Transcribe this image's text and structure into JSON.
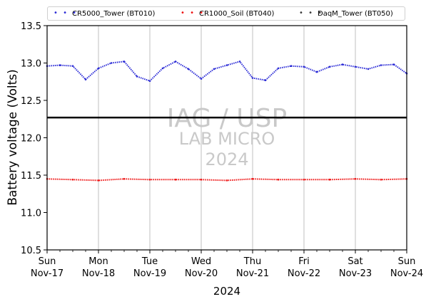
{
  "chart_data": {
    "type": "line",
    "xlabel": "2024",
    "ylabel": "Battery voltage (Volts)",
    "ylim": [
      10.5,
      13.5
    ],
    "yticks": [
      "10.5",
      "11.0",
      "11.5",
      "12.0",
      "12.5",
      "13.0",
      "13.5"
    ],
    "xlim": [
      "2024-11-17",
      "2024-11-24"
    ],
    "xticks": [
      {
        "day": "Sun",
        "date": "Nov-17"
      },
      {
        "day": "Mon",
        "date": "Nov-18"
      },
      {
        "day": "Tue",
        "date": "Nov-19"
      },
      {
        "day": "Wed",
        "date": "Nov-20"
      },
      {
        "day": "Thu",
        "date": "Nov-21"
      },
      {
        "day": "Fri",
        "date": "Nov-22"
      },
      {
        "day": "Sat",
        "date": "Nov-23"
      },
      {
        "day": "Sun",
        "date": "Nov-24"
      }
    ],
    "grid": "vertical",
    "legend_position": "top",
    "reference_line": 12.27,
    "series": [
      {
        "name": "CR5000_Tower (BT010)",
        "color": "#2b2bd6",
        "x": [
          "2024-11-17 00:00",
          "2024-11-17 06:00",
          "2024-11-17 12:00",
          "2024-11-17 18:00",
          "2024-11-18 00:00",
          "2024-11-18 06:00",
          "2024-11-18 12:00",
          "2024-11-18 18:00",
          "2024-11-19 00:00",
          "2024-11-19 06:00",
          "2024-11-19 12:00",
          "2024-11-19 18:00",
          "2024-11-20 00:00",
          "2024-11-20 06:00",
          "2024-11-20 12:00",
          "2024-11-20 18:00",
          "2024-11-21 00:00",
          "2024-11-21 06:00",
          "2024-11-21 12:00",
          "2024-11-21 18:00",
          "2024-11-22 00:00",
          "2024-11-22 06:00",
          "2024-11-22 12:00",
          "2024-11-22 18:00",
          "2024-11-23 00:00",
          "2024-11-23 06:00",
          "2024-11-23 12:00",
          "2024-11-23 18:00",
          "2024-11-24 00:00"
        ],
        "y": [
          12.96,
          12.97,
          12.96,
          12.78,
          12.93,
          13.0,
          13.02,
          12.82,
          12.76,
          12.93,
          13.02,
          12.92,
          12.79,
          12.92,
          12.97,
          13.02,
          12.8,
          12.77,
          12.93,
          12.96,
          12.95,
          12.88,
          12.95,
          12.98,
          12.95,
          12.92,
          12.97,
          12.98,
          12.86
        ]
      },
      {
        "name": "CR1000_Soil (BT040)",
        "color": "#ee1111",
        "x": [
          "2024-11-17 00:00",
          "2024-11-17 12:00",
          "2024-11-18 00:00",
          "2024-11-18 12:00",
          "2024-11-19 00:00",
          "2024-11-19 12:00",
          "2024-11-20 00:00",
          "2024-11-20 12:00",
          "2024-11-21 00:00",
          "2024-11-21 12:00",
          "2024-11-22 00:00",
          "2024-11-22 12:00",
          "2024-11-23 00:00",
          "2024-11-23 12:00",
          "2024-11-24 00:00"
        ],
        "y": [
          11.45,
          11.44,
          11.43,
          11.45,
          11.44,
          11.44,
          11.44,
          11.43,
          11.45,
          11.44,
          11.44,
          11.44,
          11.45,
          11.44,
          11.45
        ]
      },
      {
        "name": "DaqM_Tower (BT050)",
        "color": "#3a3a3a",
        "x": [],
        "y": []
      }
    ],
    "watermark": [
      "IAG / USP",
      "LAB MICRO",
      "2024"
    ]
  }
}
